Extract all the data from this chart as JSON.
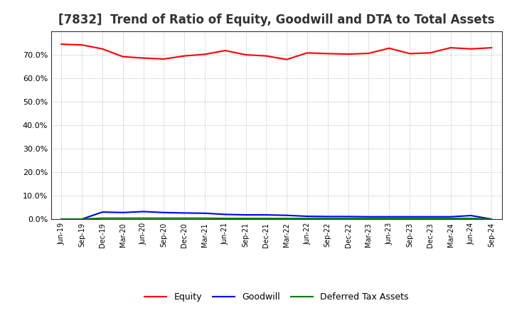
{
  "title": "[7832]  Trend of Ratio of Equity, Goodwill and DTA to Total Assets",
  "x_labels": [
    "Jun-19",
    "Sep-19",
    "Dec-19",
    "Mar-20",
    "Jun-20",
    "Sep-20",
    "Dec-20",
    "Mar-21",
    "Jun-21",
    "Sep-21",
    "Dec-21",
    "Mar-22",
    "Jun-22",
    "Sep-22",
    "Dec-22",
    "Mar-23",
    "Jun-23",
    "Sep-23",
    "Dec-23",
    "Mar-24",
    "Jun-24",
    "Sep-24"
  ],
  "equity": [
    74.5,
    74.2,
    72.5,
    69.2,
    68.6,
    68.2,
    69.5,
    70.2,
    71.8,
    70.0,
    69.5,
    68.0,
    70.8,
    70.5,
    70.3,
    70.6,
    72.8,
    70.5,
    70.8,
    73.0,
    72.5,
    73.0
  ],
  "goodwill": [
    0.0,
    0.0,
    3.0,
    2.8,
    3.2,
    2.8,
    2.6,
    2.5,
    2.0,
    1.8,
    1.8,
    1.6,
    1.2,
    1.1,
    1.1,
    1.0,
    1.0,
    1.0,
    1.0,
    1.0,
    1.5,
    0.0
  ],
  "dta": [
    0.0,
    0.0,
    0.4,
    0.4,
    0.4,
    0.4,
    0.4,
    0.4,
    0.3,
    0.3,
    0.3,
    0.3,
    0.3,
    0.3,
    0.3,
    0.3,
    0.3,
    0.3,
    0.3,
    0.3,
    0.3,
    0.0
  ],
  "equity_color": "#ff0000",
  "goodwill_color": "#0000ff",
  "dta_color": "#008000",
  "background_color": "#ffffff",
  "plot_bg_color": "#ffffff",
  "grid_color": "#aaaaaa",
  "ylim": [
    0,
    80
  ],
  "yticks": [
    0.0,
    10.0,
    20.0,
    30.0,
    40.0,
    50.0,
    60.0,
    70.0
  ],
  "legend_labels": [
    "Equity",
    "Goodwill",
    "Deferred Tax Assets"
  ],
  "title_fontsize": 12,
  "tick_fontsize": 8,
  "xtick_fontsize": 7
}
